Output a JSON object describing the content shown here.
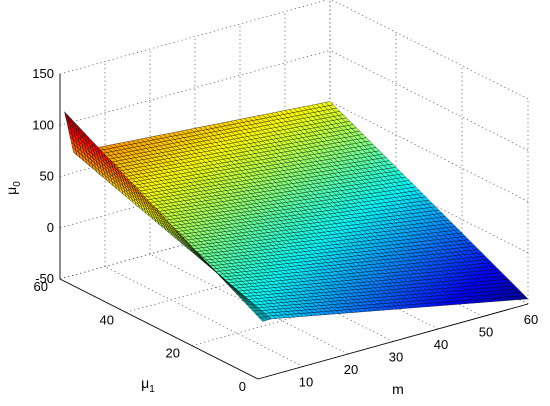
{
  "chart_data": {
    "type": "surface",
    "title": "",
    "xlabel": "m",
    "ylabel": "μ1",
    "zlabel": "μ0",
    "xlabel_main": "μ",
    "xlabel_sub": "1",
    "zlabel_main": "μ",
    "zlabel_sub": "0",
    "m_label": "m",
    "x_ticks": [
      "10",
      "20",
      "30",
      "40",
      "50",
      "60"
    ],
    "y_ticks": [
      "0",
      "20",
      "40",
      "60"
    ],
    "z_ticks": [
      "150",
      "100",
      "50",
      "0",
      "-50"
    ],
    "x_range": [
      1,
      60
    ],
    "y_range": [
      0,
      60
    ],
    "z_range": [
      -50,
      150
    ],
    "grid": true,
    "colormap": "jet",
    "surface_corner_values": {
      "m_1_mu1_60": 112,
      "m_3_mu1_60": 70,
      "m_60_mu1_60": 50,
      "m_1_mu1_0": 5,
      "m_60_mu1_0": -45
    },
    "description_values": {
      "ridge_at_m_low": "steep drop from ~112 to ~70 near m=1..3 at mu1=60",
      "plane": "mu0 decreases roughly linearly with decreasing mu1 and increasing m"
    }
  }
}
